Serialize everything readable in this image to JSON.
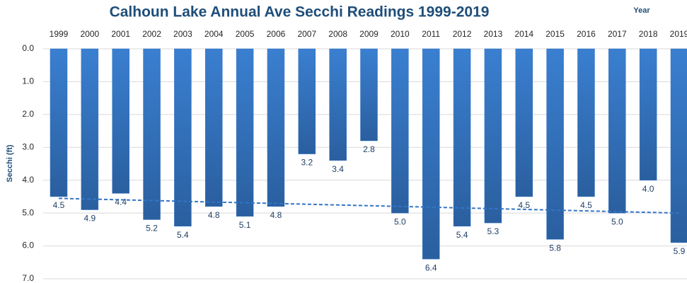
{
  "chart_data": {
    "type": "bar",
    "title": "Calhoun Lake Annual Ave Secchi Readings 1999-2019",
    "x_label": "Year",
    "y_label": "Secchi (ft)",
    "categories": [
      "1999",
      "2000",
      "2001",
      "2002",
      "2003",
      "2004",
      "2005",
      "2006",
      "2007",
      "2008",
      "2009",
      "2010",
      "2011",
      "2012",
      "2013",
      "2014",
      "2015",
      "2016",
      "2017",
      "2018",
      "2019"
    ],
    "values": [
      4.5,
      4.9,
      4.4,
      5.2,
      5.4,
      4.8,
      5.1,
      4.8,
      3.2,
      3.4,
      2.8,
      5.0,
      6.4,
      5.4,
      5.3,
      4.5,
      5.8,
      4.5,
      5.0,
      4.0,
      5.9
    ],
    "value_labels": [
      "4.5",
      "4.9",
      "4.4",
      "5.2",
      "5.4",
      "4.8",
      "5.1",
      "4.8",
      "3.2",
      "3.4",
      "2.8",
      "5.0",
      "6.4",
      "5.4",
      "5.3",
      "4.5",
      "5.8",
      "4.5",
      "5.0",
      "4.0",
      "5.9"
    ],
    "color": "#3474c4",
    "ylim": [
      0,
      7
    ],
    "inverted_y": true,
    "yticks": [
      {
        "value": 0,
        "label": "0.0"
      },
      {
        "value": 1,
        "label": "1.0"
      },
      {
        "value": 2,
        "label": "2.0"
      },
      {
        "value": 3,
        "label": "3.0"
      },
      {
        "value": 4,
        "label": "4.0"
      },
      {
        "value": 5,
        "label": "5.0"
      },
      {
        "value": 6,
        "label": "6.0"
      },
      {
        "value": 7,
        "label": "7.0"
      }
    ],
    "grid": true,
    "trendline": true
  }
}
